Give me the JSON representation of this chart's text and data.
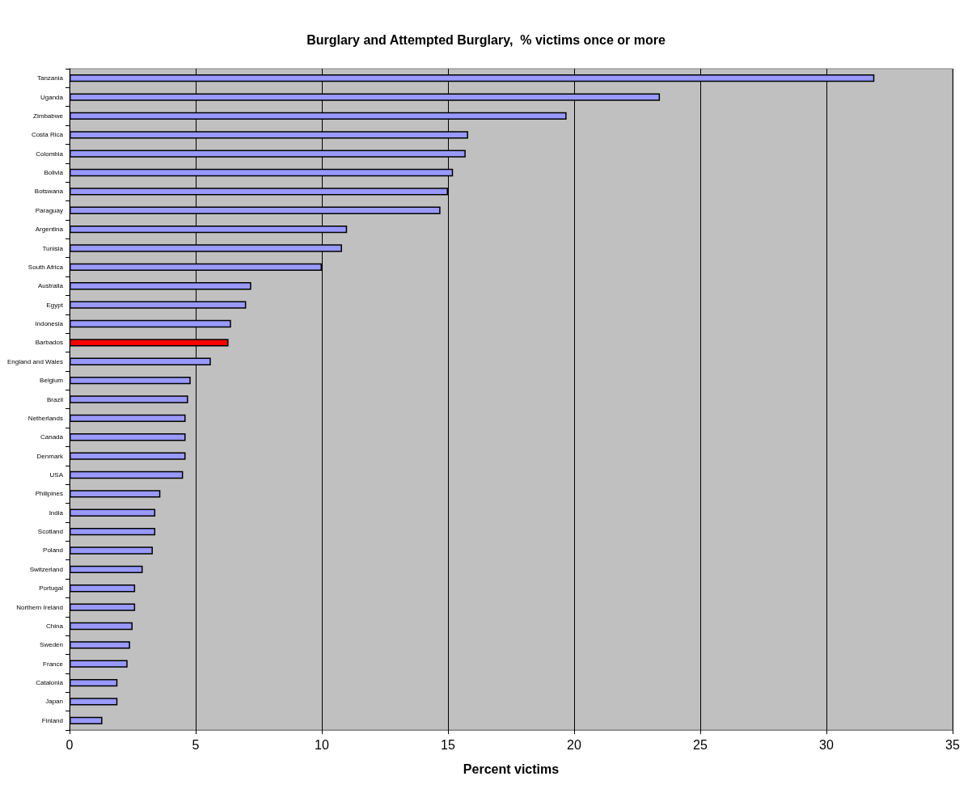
{
  "chart_data": {
    "type": "bar",
    "orientation": "horizontal",
    "title": "Burglary and Attempted Burglary,  % victims once or more",
    "xlabel": "Percent victims",
    "categories": [
      "Tanzania",
      "Uganda",
      "Zimbabwe",
      "Costa Rica",
      "Colombia",
      "Bolivia",
      "Botswana",
      "Paraguay",
      "Argentina",
      "Tunisia",
      "South Africa",
      "Australia",
      "Egypt",
      "Indonesia",
      "Barbados",
      "England and Wales",
      "Belgium",
      "Brazil",
      "Netherlands",
      "Canada",
      "Denmark",
      "USA",
      "Philipines",
      "India",
      "Scotland",
      "Poland",
      "Switzerland",
      "Portugal",
      "Northern Ireland",
      "China",
      "Sweden",
      "France",
      "Catalonia",
      "Japan",
      "Finland"
    ],
    "values": [
      31.9,
      23.4,
      19.7,
      15.8,
      15.7,
      15.2,
      15.0,
      14.7,
      11.0,
      10.8,
      10.0,
      7.2,
      7.0,
      6.4,
      6.3,
      5.6,
      4.8,
      4.7,
      4.6,
      4.6,
      4.6,
      4.5,
      3.6,
      3.4,
      3.4,
      3.3,
      2.9,
      2.6,
      2.6,
      2.5,
      2.4,
      2.3,
      1.9,
      1.9,
      1.3
    ],
    "colors": [
      "#9999ff",
      "#9999ff",
      "#9999ff",
      "#9999ff",
      "#9999ff",
      "#9999ff",
      "#9999ff",
      "#9999ff",
      "#9999ff",
      "#9999ff",
      "#9999ff",
      "#9999ff",
      "#9999ff",
      "#9999ff",
      "#ff0000",
      "#9999ff",
      "#9999ff",
      "#9999ff",
      "#9999ff",
      "#9999ff",
      "#9999ff",
      "#9999ff",
      "#9999ff",
      "#9999ff",
      "#9999ff",
      "#9999ff",
      "#9999ff",
      "#9999ff",
      "#9999ff",
      "#9999ff",
      "#9999ff",
      "#9999ff",
      "#9999ff",
      "#9999ff",
      "#9999ff"
    ],
    "xlim": [
      0,
      35
    ],
    "xticks": [
      0,
      5,
      10,
      15,
      20,
      25,
      30,
      35
    ],
    "grid": "x"
  }
}
